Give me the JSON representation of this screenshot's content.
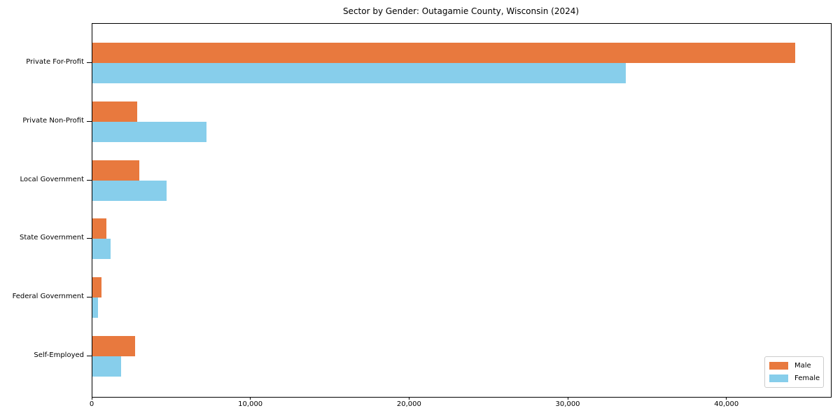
{
  "chart_data": {
    "type": "bar",
    "orientation": "horizontal",
    "title": "Sector by Gender: Outagamie County, Wisconsin (2024)",
    "categories": [
      "Private For-Profit",
      "Private Non-Profit",
      "Local Government",
      "State Government",
      "Federal Government",
      "Self-Employed"
    ],
    "series": [
      {
        "name": "Male",
        "color": "#e8793e",
        "values": [
          44300,
          2840,
          2940,
          880,
          570,
          2680
        ]
      },
      {
        "name": "Female",
        "color": "#87ceeb",
        "values": [
          33600,
          7200,
          4690,
          1130,
          350,
          1800
        ]
      }
    ],
    "xlabel": "",
    "ylabel": "",
    "xlim": [
      0,
      46540
    ],
    "xticks": [
      0,
      10000,
      20000,
      30000,
      40000
    ],
    "xtick_labels": [
      "0",
      "10,000",
      "20,000",
      "30,000",
      "40,000"
    ],
    "grid": false,
    "legend": {
      "position": "lower right",
      "entries": [
        "Male",
        "Female"
      ]
    }
  },
  "colors": {
    "male": "#e8793e",
    "female": "#87ceeb",
    "axis": "#000000",
    "text": "#000000",
    "legend_border": "#cccccc",
    "background": "#ffffff"
  }
}
